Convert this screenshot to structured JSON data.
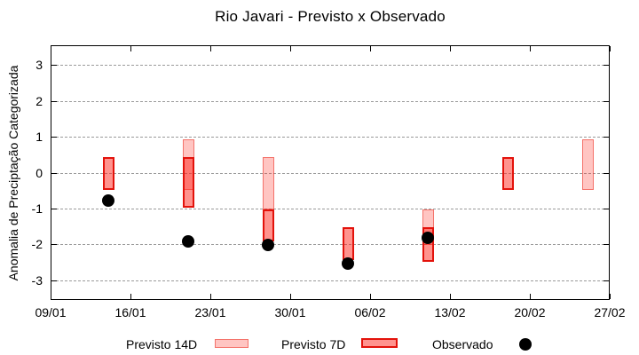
{
  "chart_data": {
    "type": "bar",
    "title": "Rio Javari - Previsto x Observado",
    "ylabel": "Anomalia de Preciptação Categorizada",
    "xlabel": "",
    "ylim": [
      -3.55,
      3.55
    ],
    "yticks": [
      3,
      2,
      1,
      0,
      -1,
      -2,
      -3
    ],
    "xtick_labels": [
      "09/01",
      "16/01",
      "23/01",
      "30/01",
      "06/02",
      "13/02",
      "20/02",
      "27/02"
    ],
    "xtick_days": [
      0,
      7,
      14,
      21,
      28,
      35,
      42,
      49
    ],
    "xrange_days": [
      0,
      49
    ],
    "grid": "dashed-horizontal",
    "legend_position": "below",
    "series": [
      {
        "name": "Previsto 14D",
        "style": "box-light",
        "ranges": [
          {
            "date": "21/01",
            "day": 12,
            "from": -0.45,
            "to": 0.95
          },
          {
            "date": "28/01",
            "day": 19,
            "from": -1.0,
            "to": 0.45
          },
          {
            "date": "11/02",
            "day": 33,
            "from": -2.0,
            "to": -1.0
          },
          {
            "date": "25/02",
            "day": 47,
            "from": -0.45,
            "to": 0.95
          }
        ]
      },
      {
        "name": "Previsto 7D",
        "style": "box-dark",
        "ranges": [
          {
            "date": "14/01",
            "day": 5,
            "from": -0.45,
            "to": 0.45
          },
          {
            "date": "21/01",
            "day": 12,
            "from": -0.95,
            "to": 0.45
          },
          {
            "date": "28/01",
            "day": 19,
            "from": -1.9,
            "to": -1.0
          },
          {
            "date": "04/02",
            "day": 26,
            "from": -2.4,
            "to": -1.5
          },
          {
            "date": "11/02",
            "day": 33,
            "from": -2.45,
            "to": -1.5
          },
          {
            "date": "18/02",
            "day": 40,
            "from": -0.45,
            "to": 0.45
          }
        ]
      },
      {
        "name": "Observado",
        "style": "dot",
        "points": [
          {
            "date": "14/01",
            "day": 5,
            "value": -0.75
          },
          {
            "date": "21/01",
            "day": 12,
            "value": -1.9
          },
          {
            "date": "28/01",
            "day": 19,
            "value": -2.0
          },
          {
            "date": "04/02",
            "day": 26,
            "value": -2.5
          },
          {
            "date": "11/02",
            "day": 33,
            "value": -1.8
          }
        ]
      }
    ],
    "colors": {
      "previsto14_fill": "rgba(255,40,30,0.27)",
      "previsto14_border": "rgba(235,45,35,0.55)",
      "previsto7_fill": "rgba(255,40,30,0.50)",
      "previsto7_border": "#e3120b",
      "observado": "#000000",
      "grid": "#9a9a9a",
      "axis": "#000000",
      "background": "#ffffff"
    }
  }
}
